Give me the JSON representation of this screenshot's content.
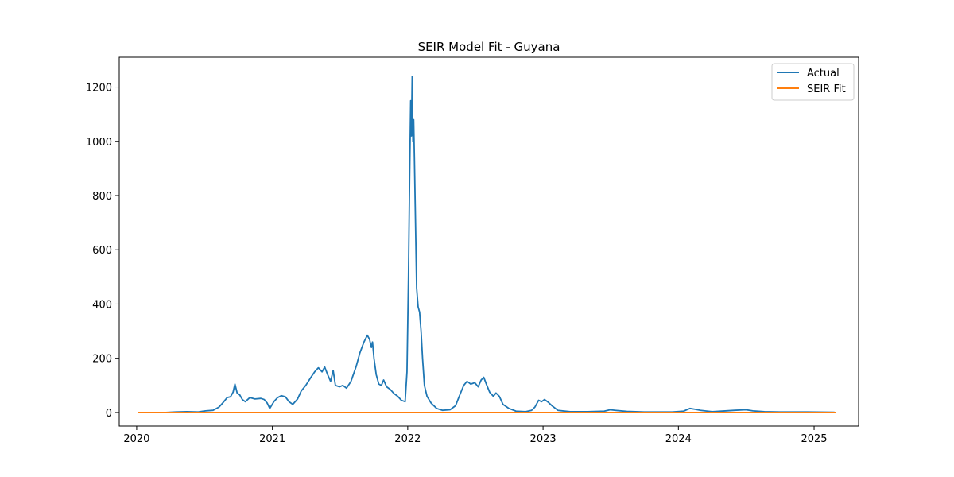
{
  "chart_data": {
    "type": "line",
    "title": "SEIR Model Fit - Guyana",
    "xlabel": "",
    "ylabel": "",
    "x_ticks": [
      "2020",
      "2021",
      "2022",
      "2023",
      "2024",
      "2025"
    ],
    "y_ticks": [
      "0",
      "200",
      "400",
      "600",
      "800",
      "1000",
      "1200"
    ],
    "xlim": [
      "2019-11-15",
      "2025-05-01"
    ],
    "ylim": [
      -50,
      1310
    ],
    "grid": false,
    "legend_position": "top-right",
    "series": [
      {
        "name": "Actual",
        "color": "#1f77b4",
        "points": [
          [
            "2020-03-20",
            0
          ],
          [
            "2020-04-15",
            2
          ],
          [
            "2020-05-15",
            3
          ],
          [
            "2020-06-15",
            2
          ],
          [
            "2020-07-05",
            6
          ],
          [
            "2020-07-25",
            8
          ],
          [
            "2020-08-10",
            20
          ],
          [
            "2020-08-20",
            35
          ],
          [
            "2020-09-01",
            55
          ],
          [
            "2020-09-10",
            58
          ],
          [
            "2020-09-17",
            75
          ],
          [
            "2020-09-22",
            105
          ],
          [
            "2020-09-28",
            72
          ],
          [
            "2020-10-05",
            65
          ],
          [
            "2020-10-12",
            48
          ],
          [
            "2020-10-20",
            40
          ],
          [
            "2020-11-01",
            55
          ],
          [
            "2020-11-15",
            50
          ],
          [
            "2020-12-01",
            52
          ],
          [
            "2020-12-10",
            48
          ],
          [
            "2020-12-18",
            35
          ],
          [
            "2020-12-25",
            15
          ],
          [
            "2021-01-05",
            40
          ],
          [
            "2021-01-15",
            55
          ],
          [
            "2021-01-25",
            62
          ],
          [
            "2021-02-05",
            58
          ],
          [
            "2021-02-15",
            40
          ],
          [
            "2021-02-25",
            30
          ],
          [
            "2021-03-10",
            50
          ],
          [
            "2021-03-20",
            80
          ],
          [
            "2021-04-01",
            100
          ],
          [
            "2021-04-15",
            130
          ],
          [
            "2021-04-25",
            150
          ],
          [
            "2021-05-05",
            165
          ],
          [
            "2021-05-15",
            150
          ],
          [
            "2021-05-22",
            168
          ],
          [
            "2021-05-30",
            140
          ],
          [
            "2021-06-07",
            115
          ],
          [
            "2021-06-14",
            155
          ],
          [
            "2021-06-20",
            100
          ],
          [
            "2021-07-01",
            95
          ],
          [
            "2021-07-10",
            100
          ],
          [
            "2021-07-20",
            90
          ],
          [
            "2021-08-01",
            115
          ],
          [
            "2021-08-15",
            170
          ],
          [
            "2021-08-25",
            220
          ],
          [
            "2021-09-05",
            260
          ],
          [
            "2021-09-14",
            285
          ],
          [
            "2021-09-20",
            270
          ],
          [
            "2021-09-25",
            240
          ],
          [
            "2021-09-28",
            260
          ],
          [
            "2021-10-02",
            200
          ],
          [
            "2021-10-08",
            140
          ],
          [
            "2021-10-15",
            105
          ],
          [
            "2021-10-22",
            100
          ],
          [
            "2021-10-28",
            120
          ],
          [
            "2021-11-05",
            95
          ],
          [
            "2021-11-15",
            85
          ],
          [
            "2021-11-25",
            70
          ],
          [
            "2021-12-05",
            60
          ],
          [
            "2021-12-15",
            45
          ],
          [
            "2021-12-25",
            40
          ],
          [
            "2021-12-30",
            150
          ],
          [
            "2022-01-03",
            500
          ],
          [
            "2022-01-06",
            850
          ],
          [
            "2022-01-09",
            1150
          ],
          [
            "2022-01-11",
            1020
          ],
          [
            "2022-01-13",
            1240
          ],
          [
            "2022-01-15",
            1000
          ],
          [
            "2022-01-17",
            1080
          ],
          [
            "2022-01-19",
            940
          ],
          [
            "2022-01-22",
            700
          ],
          [
            "2022-01-25",
            460
          ],
          [
            "2022-01-29",
            390
          ],
          [
            "2022-02-02",
            370
          ],
          [
            "2022-02-06",
            300
          ],
          [
            "2022-02-10",
            200
          ],
          [
            "2022-02-15",
            100
          ],
          [
            "2022-02-22",
            60
          ],
          [
            "2022-03-05",
            35
          ],
          [
            "2022-03-20",
            15
          ],
          [
            "2022-04-05",
            8
          ],
          [
            "2022-04-25",
            10
          ],
          [
            "2022-05-10",
            25
          ],
          [
            "2022-05-20",
            60
          ],
          [
            "2022-06-01",
            100
          ],
          [
            "2022-06-10",
            115
          ],
          [
            "2022-06-20",
            105
          ],
          [
            "2022-07-01",
            110
          ],
          [
            "2022-07-10",
            95
          ],
          [
            "2022-07-18",
            120
          ],
          [
            "2022-07-25",
            130
          ],
          [
            "2022-08-01",
            105
          ],
          [
            "2022-08-10",
            75
          ],
          [
            "2022-08-20",
            60
          ],
          [
            "2022-08-27",
            72
          ],
          [
            "2022-09-05",
            60
          ],
          [
            "2022-09-15",
            30
          ],
          [
            "2022-10-01",
            15
          ],
          [
            "2022-10-20",
            5
          ],
          [
            "2022-11-15",
            3
          ],
          [
            "2022-12-01",
            8
          ],
          [
            "2022-12-10",
            20
          ],
          [
            "2022-12-20",
            45
          ],
          [
            "2022-12-28",
            40
          ],
          [
            "2023-01-05",
            48
          ],
          [
            "2023-01-15",
            38
          ],
          [
            "2023-01-25",
            25
          ],
          [
            "2023-02-10",
            8
          ],
          [
            "2023-03-15",
            3
          ],
          [
            "2023-05-01",
            3
          ],
          [
            "2023-06-15",
            5
          ],
          [
            "2023-07-01",
            10
          ],
          [
            "2023-07-15",
            8
          ],
          [
            "2023-08-15",
            4
          ],
          [
            "2023-10-01",
            2
          ],
          [
            "2023-12-15",
            2
          ],
          [
            "2024-01-15",
            5
          ],
          [
            "2024-02-01",
            15
          ],
          [
            "2024-02-15",
            12
          ],
          [
            "2024-03-01",
            8
          ],
          [
            "2024-04-01",
            3
          ],
          [
            "2024-06-01",
            8
          ],
          [
            "2024-07-01",
            10
          ],
          [
            "2024-07-20",
            6
          ],
          [
            "2024-08-20",
            3
          ],
          [
            "2024-10-01",
            2
          ],
          [
            "2024-12-01",
            2
          ],
          [
            "2025-02-25",
            1
          ]
        ]
      },
      {
        "name": "SEIR Fit",
        "color": "#ff7f0e",
        "points": [
          [
            "2020-01-05",
            0
          ],
          [
            "2025-02-28",
            0
          ]
        ]
      }
    ]
  }
}
